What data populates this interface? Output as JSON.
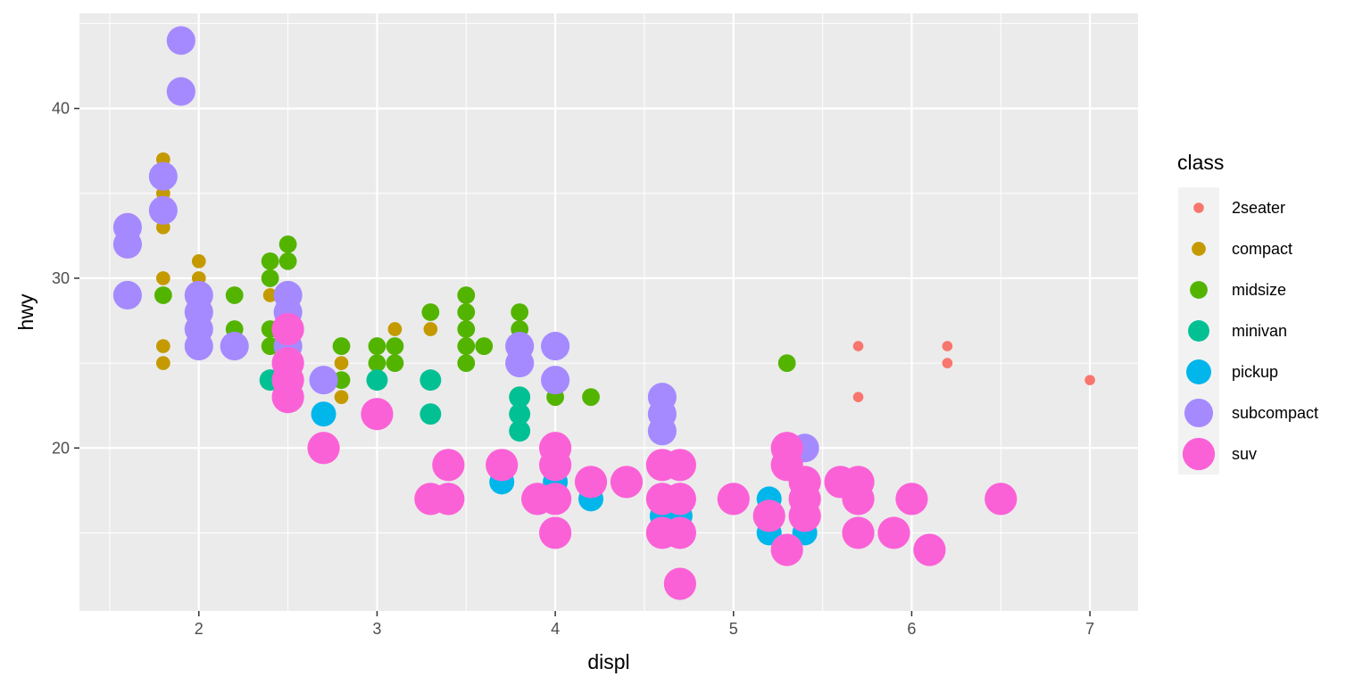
{
  "chart_data": {
    "type": "scatter",
    "xlabel": "displ",
    "ylabel": "hwy",
    "xlim": [
      1.33,
      7.27
    ],
    "ylim": [
      10.4,
      45.6
    ],
    "x_ticks": [
      2,
      3,
      4,
      5,
      6,
      7
    ],
    "y_ticks": [
      20,
      30,
      40
    ],
    "grid": true,
    "legend": {
      "title": "class",
      "position": "right"
    },
    "size_mapped_to": "class",
    "series": [
      {
        "name": "2seater",
        "color": "#F8766D",
        "size": 1,
        "points": [
          [
            5.7,
            26
          ],
          [
            5.7,
            23
          ],
          [
            6.2,
            26
          ],
          [
            6.2,
            25
          ],
          [
            7.0,
            24
          ]
        ]
      },
      {
        "name": "compact",
        "color": "#C49A00",
        "size": 2,
        "points": [
          [
            1.8,
            37
          ],
          [
            1.8,
            35
          ],
          [
            1.8,
            33
          ],
          [
            1.8,
            30
          ],
          [
            1.8,
            26
          ],
          [
            1.8,
            25
          ],
          [
            2.0,
            31
          ],
          [
            2.0,
            30
          ],
          [
            2.2,
            29
          ],
          [
            2.2,
            27
          ],
          [
            2.4,
            31
          ],
          [
            2.4,
            29
          ],
          [
            2.4,
            27
          ],
          [
            2.5,
            27
          ],
          [
            2.5,
            25
          ],
          [
            2.8,
            25
          ],
          [
            2.8,
            24
          ],
          [
            2.8,
            23
          ],
          [
            3.0,
            26
          ],
          [
            3.1,
            27
          ],
          [
            3.3,
            27
          ]
        ]
      },
      {
        "name": "midsize",
        "color": "#53B400",
        "size": 3,
        "points": [
          [
            1.8,
            29
          ],
          [
            2.0,
            29
          ],
          [
            2.0,
            28
          ],
          [
            2.2,
            29
          ],
          [
            2.2,
            27
          ],
          [
            2.4,
            31
          ],
          [
            2.4,
            30
          ],
          [
            2.4,
            27
          ],
          [
            2.4,
            26
          ],
          [
            2.5,
            32
          ],
          [
            2.5,
            31
          ],
          [
            2.5,
            26
          ],
          [
            2.8,
            26
          ],
          [
            2.8,
            24
          ],
          [
            3.0,
            26
          ],
          [
            3.0,
            25
          ],
          [
            3.1,
            26
          ],
          [
            3.1,
            25
          ],
          [
            3.3,
            28
          ],
          [
            3.5,
            29
          ],
          [
            3.5,
            28
          ],
          [
            3.5,
            27
          ],
          [
            3.5,
            26
          ],
          [
            3.5,
            25
          ],
          [
            3.6,
            26
          ],
          [
            3.8,
            28
          ],
          [
            3.8,
            27
          ],
          [
            3.8,
            26
          ],
          [
            4.0,
            23
          ],
          [
            4.2,
            23
          ],
          [
            5.3,
            25
          ]
        ]
      },
      {
        "name": "minivan",
        "color": "#00C094",
        "size": 4,
        "points": [
          [
            2.4,
            24
          ],
          [
            3.0,
            24
          ],
          [
            3.3,
            24
          ],
          [
            3.3,
            22
          ],
          [
            3.8,
            23
          ],
          [
            3.8,
            22
          ],
          [
            3.8,
            21
          ],
          [
            4.0,
            24
          ]
        ]
      },
      {
        "name": "pickup",
        "color": "#00B6EB",
        "size": 5,
        "points": [
          [
            2.7,
            22
          ],
          [
            2.7,
            20
          ],
          [
            3.4,
            19
          ],
          [
            3.4,
            17
          ],
          [
            3.7,
            18
          ],
          [
            4.0,
            20
          ],
          [
            4.0,
            18
          ],
          [
            4.2,
            17
          ],
          [
            4.6,
            17
          ],
          [
            4.6,
            16
          ],
          [
            4.7,
            17
          ],
          [
            4.7,
            16
          ],
          [
            5.2,
            17
          ],
          [
            5.2,
            16
          ],
          [
            5.2,
            15
          ],
          [
            5.4,
            15
          ],
          [
            5.7,
            17
          ],
          [
            5.9,
            15
          ]
        ]
      },
      {
        "name": "subcompact",
        "color": "#A58AFF",
        "size": 6,
        "points": [
          [
            1.6,
            33
          ],
          [
            1.6,
            32
          ],
          [
            1.6,
            29
          ],
          [
            1.8,
            36
          ],
          [
            1.8,
            34
          ],
          [
            1.9,
            44
          ],
          [
            1.9,
            41
          ],
          [
            2.0,
            29
          ],
          [
            2.0,
            28
          ],
          [
            2.0,
            27
          ],
          [
            2.0,
            26
          ],
          [
            2.2,
            26
          ],
          [
            2.5,
            29
          ],
          [
            2.5,
            28
          ],
          [
            2.5,
            26
          ],
          [
            2.7,
            24
          ],
          [
            3.8,
            26
          ],
          [
            3.8,
            25
          ],
          [
            4.0,
            26
          ],
          [
            4.0,
            24
          ],
          [
            4.6,
            23
          ],
          [
            4.6,
            22
          ],
          [
            4.6,
            21
          ],
          [
            5.4,
            20
          ]
        ]
      },
      {
        "name": "suv",
        "color": "#FB61D7",
        "size": 7,
        "points": [
          [
            2.5,
            27
          ],
          [
            2.5,
            25
          ],
          [
            2.5,
            24
          ],
          [
            2.5,
            23
          ],
          [
            2.7,
            20
          ],
          [
            3.0,
            22
          ],
          [
            3.3,
            17
          ],
          [
            3.4,
            19
          ],
          [
            3.4,
            17
          ],
          [
            3.7,
            19
          ],
          [
            3.9,
            17
          ],
          [
            4.0,
            20
          ],
          [
            4.0,
            19
          ],
          [
            4.0,
            17
          ],
          [
            4.0,
            15
          ],
          [
            4.2,
            18
          ],
          [
            4.4,
            18
          ],
          [
            4.6,
            19
          ],
          [
            4.6,
            17
          ],
          [
            4.6,
            15
          ],
          [
            4.7,
            19
          ],
          [
            4.7,
            17
          ],
          [
            4.7,
            15
          ],
          [
            4.7,
            12
          ],
          [
            5.0,
            17
          ],
          [
            5.2,
            16
          ],
          [
            5.3,
            20
          ],
          [
            5.3,
            19
          ],
          [
            5.3,
            14
          ],
          [
            5.4,
            18
          ],
          [
            5.4,
            17
          ],
          [
            5.4,
            16
          ],
          [
            5.6,
            18
          ],
          [
            5.7,
            18
          ],
          [
            5.7,
            17
          ],
          [
            5.7,
            15
          ],
          [
            5.9,
            15
          ],
          [
            6.0,
            17
          ],
          [
            6.1,
            14
          ],
          [
            6.5,
            17
          ]
        ]
      }
    ]
  }
}
